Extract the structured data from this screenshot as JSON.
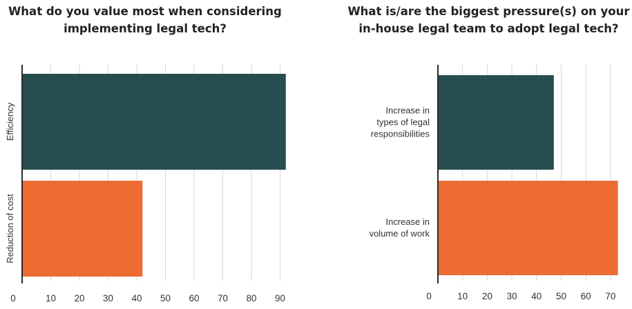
{
  "chart_data": [
    {
      "type": "bar",
      "orientation": "horizontal",
      "title": "What do you value most when considering implementing legal tech?",
      "categories": [
        "Efficiency",
        "Reduction of cost"
      ],
      "values": [
        92,
        42
      ],
      "category_label_orientation": "vertical",
      "xlabel": "",
      "ylabel": "",
      "xlim": [
        0,
        95
      ],
      "xticks": [
        0,
        10,
        20,
        30,
        40,
        50,
        60,
        70,
        80,
        90
      ],
      "grid": true,
      "legend": "none",
      "colors": [
        "#264d4f",
        "#ec6c33"
      ]
    },
    {
      "type": "bar",
      "orientation": "horizontal",
      "title": "What is/are the biggest pressure(s) on your in-house legal team to adopt legal tech?",
      "categories": [
        "Increase in types of legal responsibilities",
        "Increase in volume of work"
      ],
      "values": [
        47,
        73
      ],
      "category_label_orientation": "horizontal",
      "xlabel": "",
      "ylabel": "",
      "xlim": [
        0,
        76
      ],
      "xticks": [
        0,
        10,
        20,
        30,
        40,
        50,
        60,
        70
      ],
      "grid": true,
      "legend": "none",
      "colors": [
        "#264d4f",
        "#ec6c33"
      ]
    }
  ]
}
